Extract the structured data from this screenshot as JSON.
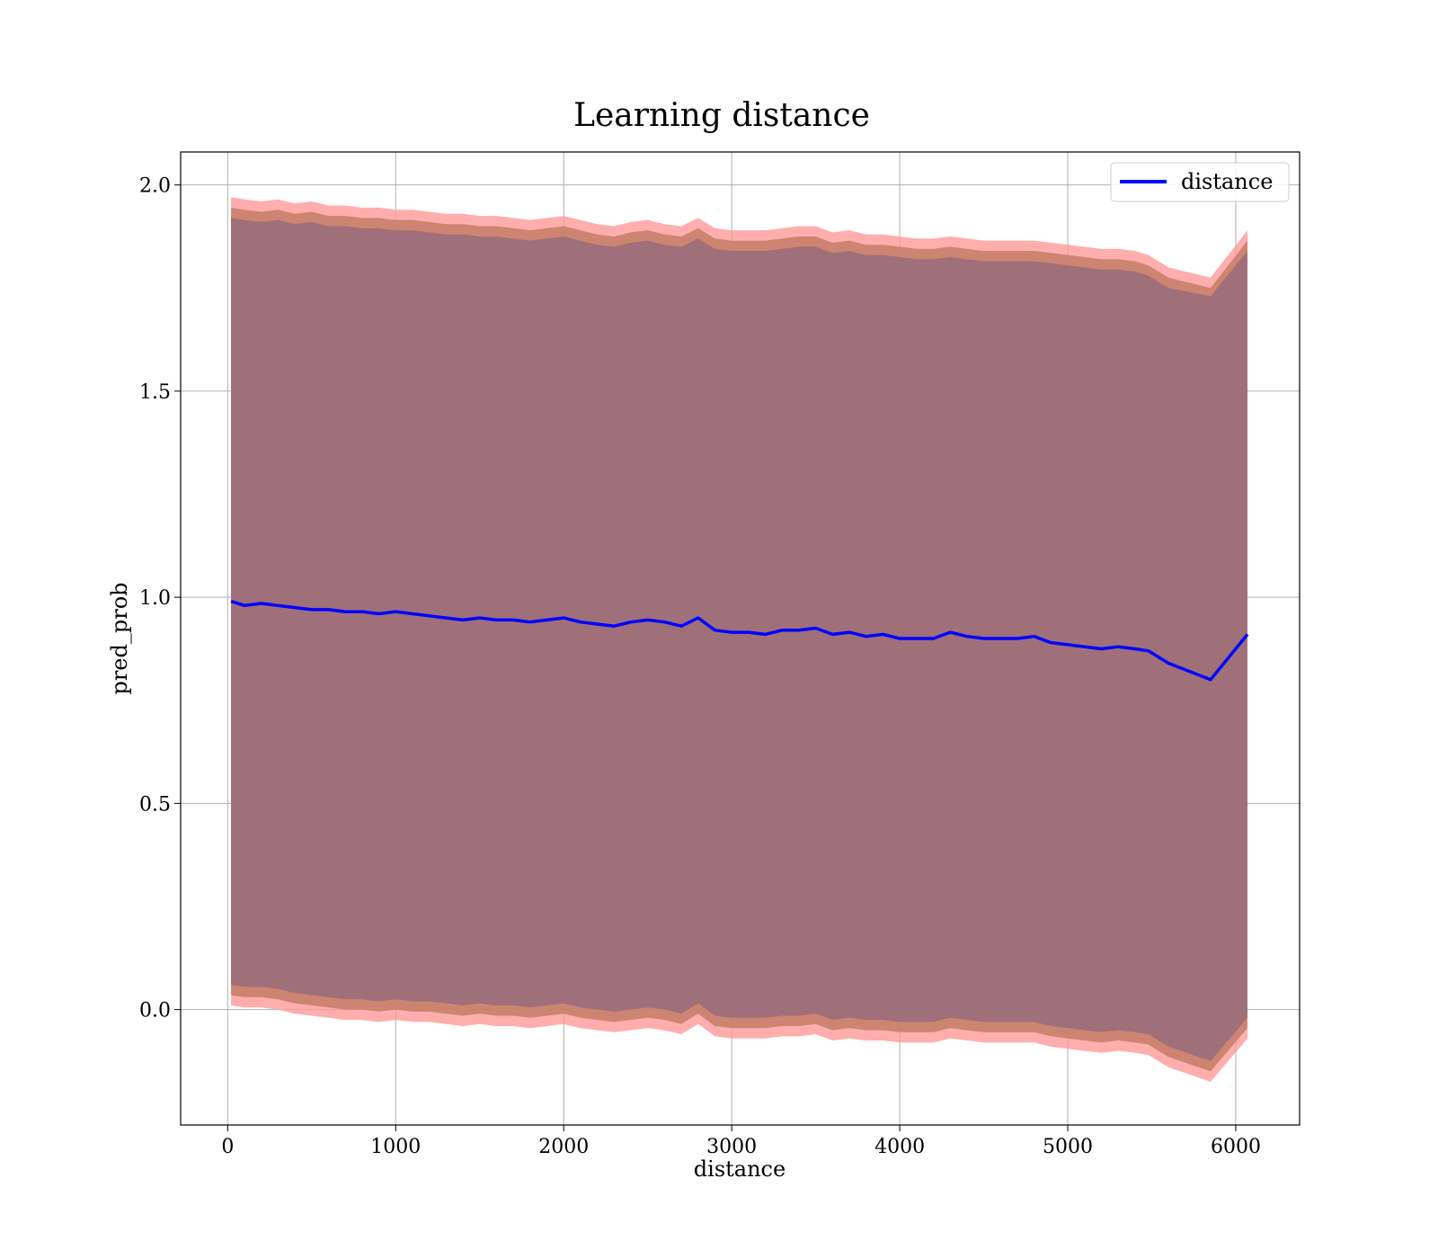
{
  "chart_data": {
    "type": "line",
    "title": "Learning distance",
    "xlabel": "distance",
    "ylabel": "pred_prob",
    "xlim": [
      -280,
      6380
    ],
    "ylim": [
      -0.28,
      2.08
    ],
    "xticks": [
      0,
      1000,
      2000,
      3000,
      4000,
      5000,
      6000
    ],
    "yticks": [
      0.0,
      0.5,
      1.0,
      1.5,
      2.0
    ],
    "grid": true,
    "legend": {
      "position": "top-right",
      "entries": [
        "distance"
      ]
    },
    "colors": {
      "line": "#0000ff",
      "band_outer": "#ff9999",
      "band_middle": "#c8806a",
      "band_inner": "#a0707a",
      "grid": "#b0b0b0"
    },
    "series": [
      {
        "name": "distance",
        "x": [
          20,
          100,
          200,
          300,
          400,
          500,
          600,
          700,
          800,
          900,
          1000,
          1100,
          1200,
          1300,
          1400,
          1500,
          1600,
          1700,
          1800,
          1900,
          2000,
          2100,
          2200,
          2300,
          2400,
          2500,
          2600,
          2700,
          2800,
          2900,
          3000,
          3100,
          3200,
          3300,
          3400,
          3500,
          3600,
          3700,
          3800,
          3900,
          4000,
          4100,
          4200,
          4300,
          4400,
          4500,
          4600,
          4700,
          4800,
          4900,
          5000,
          5100,
          5200,
          5300,
          5400,
          5480,
          5600,
          5850,
          6070
        ],
        "y": [
          0.99,
          0.98,
          0.985,
          0.98,
          0.975,
          0.97,
          0.97,
          0.965,
          0.965,
          0.96,
          0.965,
          0.96,
          0.955,
          0.95,
          0.945,
          0.95,
          0.945,
          0.945,
          0.94,
          0.945,
          0.95,
          0.94,
          0.935,
          0.93,
          0.94,
          0.945,
          0.94,
          0.93,
          0.95,
          0.92,
          0.915,
          0.915,
          0.91,
          0.92,
          0.92,
          0.925,
          0.91,
          0.915,
          0.905,
          0.91,
          0.9,
          0.9,
          0.9,
          0.915,
          0.905,
          0.9,
          0.9,
          0.9,
          0.905,
          0.89,
          0.885,
          0.88,
          0.875,
          0.88,
          0.875,
          0.87,
          0.84,
          0.8,
          0.91
        ],
        "band_outer_upper": [
          1.97,
          1.965,
          1.96,
          1.965,
          1.955,
          1.96,
          1.95,
          1.95,
          1.945,
          1.945,
          1.94,
          1.94,
          1.935,
          1.93,
          1.93,
          1.925,
          1.925,
          1.92,
          1.915,
          1.92,
          1.925,
          1.915,
          1.905,
          1.9,
          1.91,
          1.915,
          1.905,
          1.9,
          1.92,
          1.895,
          1.89,
          1.89,
          1.89,
          1.895,
          1.9,
          1.9,
          1.885,
          1.89,
          1.88,
          1.88,
          1.875,
          1.87,
          1.87,
          1.875,
          1.87,
          1.865,
          1.865,
          1.865,
          1.865,
          1.86,
          1.855,
          1.85,
          1.845,
          1.845,
          1.84,
          1.83,
          1.8,
          1.775,
          1.89
        ],
        "band_outer_lower": [
          0.01,
          0.005,
          0.005,
          0.0,
          -0.01,
          -0.015,
          -0.02,
          -0.025,
          -0.025,
          -0.03,
          -0.025,
          -0.03,
          -0.03,
          -0.035,
          -0.04,
          -0.035,
          -0.04,
          -0.04,
          -0.045,
          -0.04,
          -0.035,
          -0.045,
          -0.05,
          -0.055,
          -0.05,
          -0.045,
          -0.05,
          -0.06,
          -0.035,
          -0.065,
          -0.07,
          -0.07,
          -0.07,
          -0.065,
          -0.065,
          -0.06,
          -0.075,
          -0.07,
          -0.075,
          -0.075,
          -0.08,
          -0.08,
          -0.08,
          -0.07,
          -0.075,
          -0.08,
          -0.08,
          -0.08,
          -0.08,
          -0.09,
          -0.095,
          -0.1,
          -0.105,
          -0.1,
          -0.105,
          -0.11,
          -0.14,
          -0.175,
          -0.07
        ],
        "band_middle_upper": [
          1.945,
          1.94,
          1.935,
          1.94,
          1.93,
          1.935,
          1.925,
          1.925,
          1.92,
          1.92,
          1.915,
          1.915,
          1.91,
          1.905,
          1.905,
          1.9,
          1.9,
          1.895,
          1.89,
          1.895,
          1.9,
          1.89,
          1.88,
          1.875,
          1.885,
          1.89,
          1.88,
          1.875,
          1.895,
          1.87,
          1.865,
          1.865,
          1.865,
          1.87,
          1.875,
          1.875,
          1.86,
          1.865,
          1.855,
          1.855,
          1.85,
          1.845,
          1.845,
          1.85,
          1.845,
          1.84,
          1.84,
          1.84,
          1.84,
          1.835,
          1.83,
          1.825,
          1.82,
          1.82,
          1.815,
          1.805,
          1.775,
          1.75,
          1.865
        ],
        "band_middle_lower": [
          0.035,
          0.03,
          0.03,
          0.025,
          0.015,
          0.01,
          0.005,
          0.0,
          0.0,
          -0.005,
          0.0,
          -0.005,
          -0.005,
          -0.01,
          -0.015,
          -0.01,
          -0.015,
          -0.015,
          -0.02,
          -0.015,
          -0.01,
          -0.02,
          -0.025,
          -0.03,
          -0.025,
          -0.02,
          -0.025,
          -0.035,
          -0.01,
          -0.04,
          -0.045,
          -0.045,
          -0.045,
          -0.04,
          -0.04,
          -0.035,
          -0.05,
          -0.045,
          -0.05,
          -0.05,
          -0.055,
          -0.055,
          -0.055,
          -0.045,
          -0.05,
          -0.055,
          -0.055,
          -0.055,
          -0.055,
          -0.065,
          -0.07,
          -0.075,
          -0.08,
          -0.075,
          -0.08,
          -0.085,
          -0.115,
          -0.15,
          -0.045
        ],
        "band_inner_upper": [
          1.92,
          1.915,
          1.91,
          1.915,
          1.905,
          1.91,
          1.9,
          1.9,
          1.895,
          1.895,
          1.89,
          1.89,
          1.885,
          1.88,
          1.88,
          1.875,
          1.875,
          1.87,
          1.865,
          1.87,
          1.875,
          1.865,
          1.855,
          1.85,
          1.86,
          1.865,
          1.855,
          1.85,
          1.87,
          1.845,
          1.84,
          1.84,
          1.84,
          1.845,
          1.85,
          1.85,
          1.835,
          1.84,
          1.83,
          1.83,
          1.825,
          1.82,
          1.82,
          1.825,
          1.82,
          1.815,
          1.815,
          1.815,
          1.815,
          1.81,
          1.805,
          1.8,
          1.795,
          1.795,
          1.79,
          1.78,
          1.75,
          1.73,
          1.84
        ],
        "band_inner_lower": [
          0.06,
          0.055,
          0.055,
          0.05,
          0.04,
          0.035,
          0.03,
          0.025,
          0.025,
          0.02,
          0.025,
          0.02,
          0.02,
          0.015,
          0.01,
          0.015,
          0.01,
          0.01,
          0.005,
          0.01,
          0.015,
          0.005,
          0.0,
          -0.005,
          0.0,
          0.005,
          0.0,
          -0.01,
          0.015,
          -0.015,
          -0.02,
          -0.02,
          -0.02,
          -0.015,
          -0.015,
          -0.01,
          -0.025,
          -0.02,
          -0.025,
          -0.025,
          -0.03,
          -0.03,
          -0.03,
          -0.02,
          -0.025,
          -0.03,
          -0.03,
          -0.03,
          -0.03,
          -0.04,
          -0.045,
          -0.05,
          -0.055,
          -0.05,
          -0.055,
          -0.06,
          -0.09,
          -0.125,
          -0.02
        ]
      }
    ]
  }
}
